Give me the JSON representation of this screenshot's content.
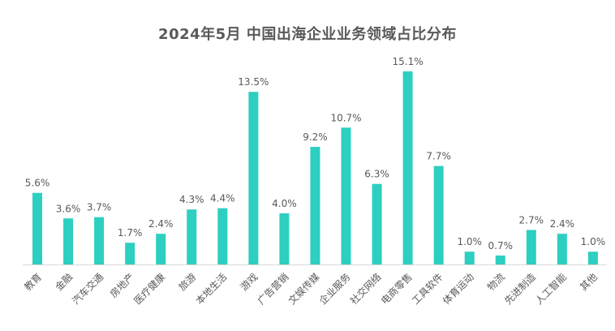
{
  "chart_data": {
    "type": "bar",
    "title": "2024年5月 中国出海企业业务领域占比分布",
    "categories": [
      "教育",
      "金融",
      "汽车交通",
      "房地产",
      "医疗健康",
      "旅游",
      "本地生活",
      "游戏",
      "广告营销",
      "文娱传媒",
      "企业服务",
      "社交网络",
      "电商零售",
      "工具软件",
      "体育运动",
      "物流",
      "先进制造",
      "人工智能",
      "其他"
    ],
    "values": [
      5.6,
      3.6,
      3.7,
      1.7,
      2.4,
      4.3,
      4.4,
      13.5,
      4.0,
      9.2,
      10.7,
      6.3,
      15.1,
      7.7,
      1.0,
      0.7,
      2.7,
      2.4,
      1.0
    ],
    "value_labels": [
      "5.6%",
      "3.6%",
      "3.7%",
      "1.7%",
      "2.4%",
      "4.3%",
      "4.4%",
      "13.5%",
      "4.0%",
      "9.2%",
      "10.7%",
      "6.3%",
      "15.1%",
      "7.7%",
      "1.0%",
      "0.7%",
      "2.7%",
      "2.4%",
      "1.0%"
    ],
    "xlabel": "",
    "ylabel": "",
    "ylim": [
      0,
      15.1
    ],
    "grid": false,
    "legend": "none",
    "bar_color": "#2ccfc0"
  }
}
